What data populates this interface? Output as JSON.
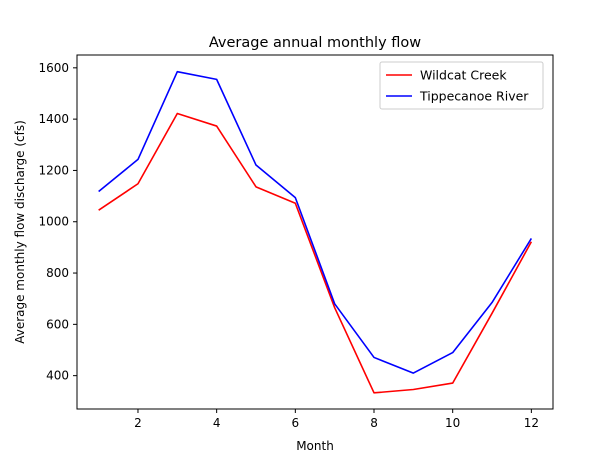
{
  "chart_data": {
    "type": "line",
    "title": "Average annual monthly flow",
    "xlabel": "Month",
    "ylabel": "Average monthly flow discharge (cfs)",
    "x": [
      1,
      2,
      3,
      4,
      5,
      6,
      7,
      8,
      9,
      10,
      11,
      12
    ],
    "xlim": [
      0.45,
      12.55
    ],
    "ylim": [
      270,
      1650
    ],
    "xticks": [
      2,
      4,
      6,
      8,
      10,
      12
    ],
    "yticks": [
      400,
      600,
      800,
      1000,
      1200,
      1400,
      1600
    ],
    "grid": false,
    "legend_position": "upper right",
    "series": [
      {
        "name": "Wildcat Creek",
        "color": "#ff0000",
        "values": [
          1045,
          1148,
          1422,
          1373,
          1136,
          1072,
          665,
          333,
          346,
          371,
          643,
          922
        ]
      },
      {
        "name": "Tippecanoe River",
        "color": "#0000ff",
        "values": [
          1118,
          1243,
          1585,
          1555,
          1221,
          1094,
          680,
          471,
          410,
          490,
          685,
          935
        ]
      }
    ]
  }
}
